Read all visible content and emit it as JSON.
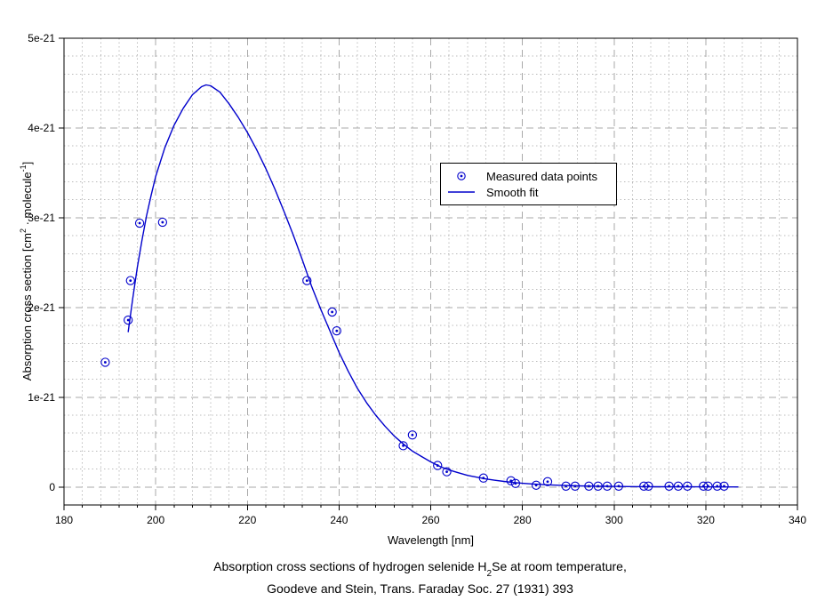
{
  "figure": {
    "xlabel": "Wavelength [nm]",
    "ylabel": {
      "p1": "Absorption cross section [cm",
      "sup1": "2",
      "p2": " · molecule",
      "sup2": "-1",
      "p3": "]"
    },
    "caption": {
      "line1_pre": "Absorption cross sections of hydrogen selenide H",
      "line1_sub": "2",
      "line1_post": "Se at room temperature,",
      "line2": "Goodeve and Stein, Trans. Faraday Soc. 27 (1931) 393"
    },
    "colors": {
      "series_blue": "#0000cc",
      "grid_major": "#a9a9a9",
      "grid_minor": "#bcbcbc",
      "frame": "#000000",
      "text": "#000000",
      "background": "#ffffff"
    }
  },
  "legend": {
    "entries": [
      {
        "label": "Measured data points",
        "marker": "circle-dot"
      },
      {
        "label": "Smooth fit",
        "marker": "line"
      }
    ]
  },
  "chart_data": {
    "type": "scatter",
    "title": "Absorption cross sections of hydrogen selenide H2Se at room temperature, Goodeve and Stein, Trans. Faraday Soc. 27 (1931) 393",
    "xlabel": "Wavelength [nm]",
    "ylabel": "Absorption cross section [cm2 · molecule-1]",
    "y_unit_note": "y values given in units of 1e-21 cm2/molecule",
    "xlim": [
      180,
      340
    ],
    "ylim_1e21": [
      -0.2,
      5.0
    ],
    "x_major_ticks": [
      180,
      200,
      220,
      240,
      260,
      280,
      300,
      320,
      340
    ],
    "x_minor_step_nm": 4,
    "y_major_ticks_1e21": [
      0,
      1,
      2,
      3,
      4,
      5
    ],
    "y_tick_labels": [
      "0",
      "1e-21",
      "2e-21",
      "3e-21",
      "4e-21",
      "5e-21"
    ],
    "y_minor_step_1e21": 0.2,
    "grid": "major dashed gray, minor dotted light gray",
    "legend_position": "inside, upper center-right, boxed",
    "series": [
      {
        "name": "Measured data points",
        "type": "scatter",
        "marker": "open-circle-with-center-dot",
        "color": "#0000cc",
        "points": [
          [
            189,
            1.39
          ],
          [
            194,
            1.86
          ],
          [
            194.5,
            2.3
          ],
          [
            196.5,
            2.94
          ],
          [
            201.5,
            2.95
          ],
          [
            233,
            2.3
          ],
          [
            238.5,
            1.95
          ],
          [
            239.5,
            1.74
          ],
          [
            254,
            0.46
          ],
          [
            256,
            0.58
          ],
          [
            261.5,
            0.24
          ],
          [
            263.5,
            0.17
          ],
          [
            271.5,
            0.1
          ],
          [
            277.5,
            0.07
          ],
          [
            278.5,
            0.04
          ],
          [
            283,
            0.02
          ],
          [
            285.5,
            0.06
          ],
          [
            289.5,
            0.01
          ],
          [
            291.5,
            0.01
          ],
          [
            294.5,
            0.01
          ],
          [
            296.5,
            0.01
          ],
          [
            298.5,
            0.01
          ],
          [
            301,
            0.01
          ],
          [
            306.5,
            0.01
          ],
          [
            307.5,
            0.01
          ],
          [
            312,
            0.01
          ],
          [
            314,
            0.01
          ],
          [
            316,
            0.01
          ],
          [
            319.5,
            0.01
          ],
          [
            320.5,
            0.01
          ],
          [
            322.5,
            0.01
          ],
          [
            324,
            0.01
          ]
        ]
      },
      {
        "name": "Smooth fit",
        "type": "line",
        "color": "#0000cc",
        "points": [
          [
            194,
            1.73
          ],
          [
            195,
            2.1
          ],
          [
            196,
            2.45
          ],
          [
            197,
            2.75
          ],
          [
            198,
            3.02
          ],
          [
            199,
            3.25
          ],
          [
            200,
            3.46
          ],
          [
            202,
            3.78
          ],
          [
            204,
            4.03
          ],
          [
            206,
            4.22
          ],
          [
            208,
            4.37
          ],
          [
            210,
            4.46
          ],
          [
            211,
            4.48
          ],
          [
            212,
            4.47
          ],
          [
            214,
            4.4
          ],
          [
            216,
            4.27
          ],
          [
            218,
            4.12
          ],
          [
            220,
            3.95
          ],
          [
            222,
            3.76
          ],
          [
            224,
            3.55
          ],
          [
            226,
            3.32
          ],
          [
            228,
            3.07
          ],
          [
            230,
            2.81
          ],
          [
            232,
            2.53
          ],
          [
            234,
            2.24
          ],
          [
            236,
            1.98
          ],
          [
            238,
            1.74
          ],
          [
            240,
            1.5
          ],
          [
            242,
            1.29
          ],
          [
            244,
            1.1
          ],
          [
            246,
            0.94
          ],
          [
            248,
            0.8
          ],
          [
            250,
            0.68
          ],
          [
            252,
            0.57
          ],
          [
            254,
            0.48
          ],
          [
            256,
            0.4
          ],
          [
            258,
            0.34
          ],
          [
            260,
            0.28
          ],
          [
            262,
            0.23
          ],
          [
            264,
            0.19
          ],
          [
            266,
            0.16
          ],
          [
            268,
            0.13
          ],
          [
            270,
            0.11
          ],
          [
            272,
            0.09
          ],
          [
            274,
            0.075
          ],
          [
            276,
            0.062
          ],
          [
            278,
            0.051
          ],
          [
            280,
            0.042
          ],
          [
            282,
            0.035
          ],
          [
            284,
            0.029
          ],
          [
            286,
            0.024
          ],
          [
            288,
            0.02
          ],
          [
            290,
            0.016
          ],
          [
            292,
            0.013
          ],
          [
            294,
            0.011
          ],
          [
            296,
            0.009
          ],
          [
            298,
            0.008
          ],
          [
            300,
            0.007
          ],
          [
            303,
            0.005
          ],
          [
            306,
            0.004
          ],
          [
            310,
            0.003
          ],
          [
            314,
            0.002
          ],
          [
            318,
            0.002
          ],
          [
            322,
            0.001
          ],
          [
            325,
            0.001
          ],
          [
            327,
            0.001
          ]
        ]
      }
    ]
  }
}
